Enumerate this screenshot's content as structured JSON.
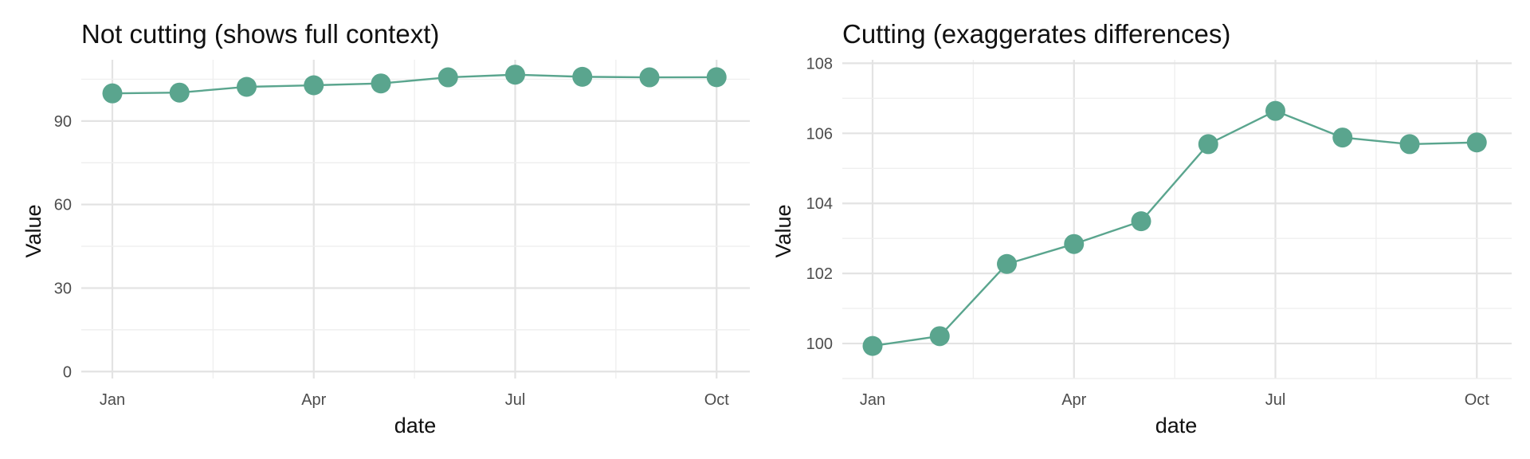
{
  "chart_data": [
    {
      "type": "line",
      "title": "Not cutting (shows full context)",
      "xlabel": "date",
      "ylabel": "Value",
      "x": [
        "Jan",
        "Feb",
        "Mar",
        "Apr",
        "May",
        "Jun",
        "Jul",
        "Aug",
        "Sep",
        "Oct"
      ],
      "x_ticks": [
        "Jan",
        "Apr",
        "Jul",
        "Oct"
      ],
      "y_ticks": [
        0,
        30,
        60,
        90
      ],
      "ylim": [
        -2.5,
        112
      ],
      "grid": true,
      "series": [
        {
          "values": [
            99.93,
            100.21,
            102.27,
            102.84,
            103.49,
            105.69,
            106.64,
            105.88,
            105.69,
            105.74
          ]
        }
      ],
      "color": "#5aa58e"
    },
    {
      "type": "line",
      "title": "Cutting (exaggerates differences)",
      "xlabel": "date",
      "ylabel": "Value",
      "x": [
        "Jan",
        "Feb",
        "Mar",
        "Apr",
        "May",
        "Jun",
        "Jul",
        "Aug",
        "Sep",
        "Oct"
      ],
      "x_ticks": [
        "Jan",
        "Apr",
        "Jul",
        "Oct"
      ],
      "y_ticks": [
        100,
        102,
        104,
        106,
        108
      ],
      "ylim": [
        99.0,
        108.1
      ],
      "grid": true,
      "series": [
        {
          "values": [
            99.93,
            100.21,
            102.27,
            102.84,
            103.49,
            105.69,
            106.64,
            105.88,
            105.69,
            105.74
          ]
        }
      ],
      "color": "#5aa58e"
    }
  ]
}
